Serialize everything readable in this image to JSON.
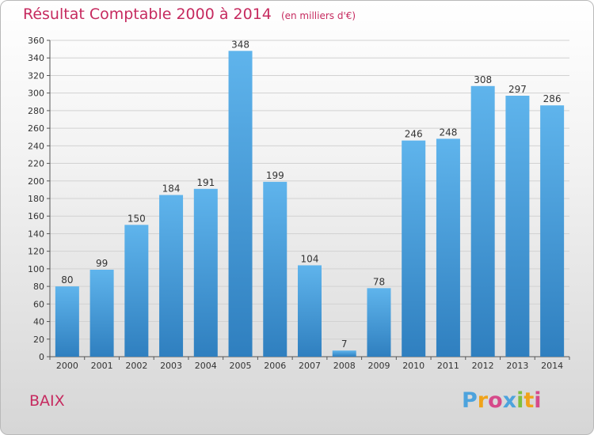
{
  "header": {
    "title": "Résultat Comptable 2000 à 2014",
    "subtitle": "(en milliers d'€)"
  },
  "footer": {
    "location": "BAIX",
    "logo_text": "Proxiti",
    "logo_colors": [
      "#4da3dd",
      "#f0a31a",
      "#d64a8a",
      "#4da3dd",
      "#7fbf3f",
      "#f0a31a",
      "#d64a8a"
    ]
  },
  "colors": {
    "bar_top": "#5fb4ec",
    "bar_bottom": "#2f7fbf",
    "grid": "#d2d2d2",
    "title": "#c62a5f"
  },
  "chart_data": {
    "type": "bar",
    "title": "Résultat Comptable 2000 à 2014",
    "subtitle": "(en milliers d'€)",
    "xlabel": "",
    "ylabel": "",
    "categories": [
      "2000",
      "2001",
      "2002",
      "2003",
      "2004",
      "2005",
      "2006",
      "2007",
      "2008",
      "2009",
      "2010",
      "2011",
      "2012",
      "2013",
      "2014"
    ],
    "values": [
      80,
      99,
      150,
      184,
      191,
      348,
      199,
      104,
      7,
      78,
      246,
      248,
      308,
      297,
      286
    ],
    "ylim": [
      0,
      360
    ],
    "yticks": [
      0,
      20,
      40,
      60,
      80,
      100,
      120,
      140,
      160,
      180,
      200,
      220,
      240,
      260,
      280,
      300,
      320,
      340,
      360
    ],
    "grid": true,
    "legend": "none"
  }
}
